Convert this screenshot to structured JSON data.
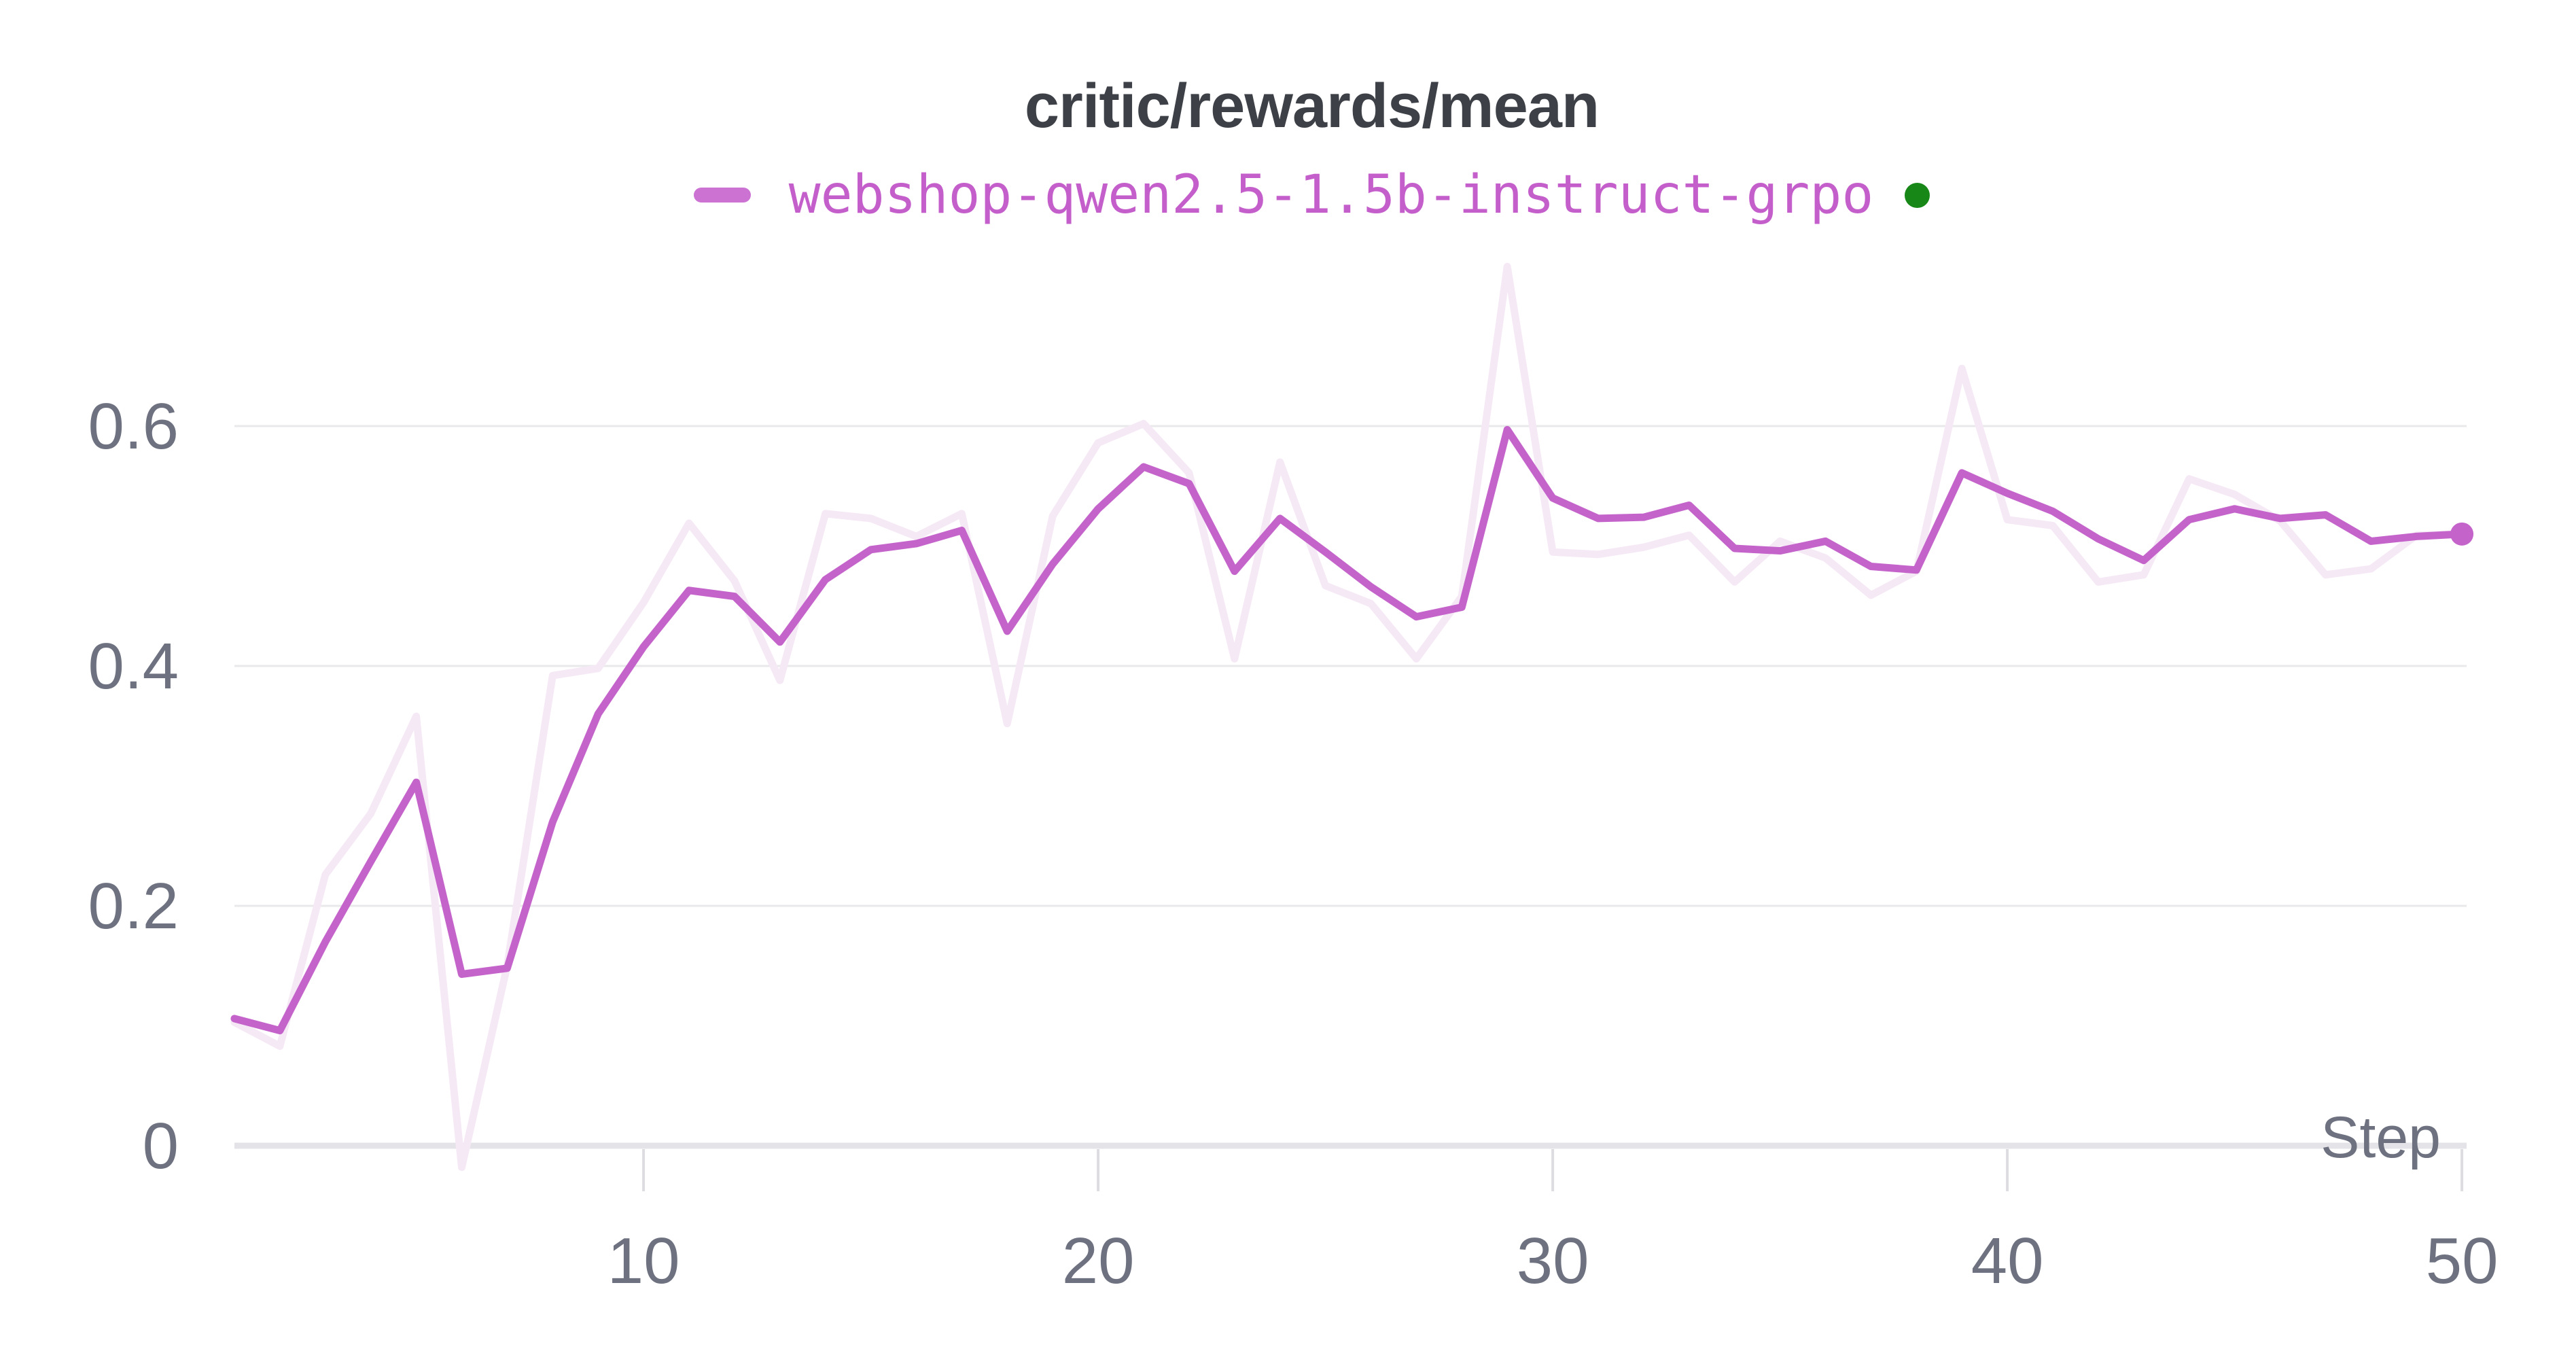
{
  "header": {
    "title": "critic/rewards/mean"
  },
  "legend": {
    "run_name": "webshop-qwen2.5-1.5b-instruct-grpo",
    "swatch_color": "#cb72d3",
    "label_color": "#c45ecb",
    "status_dot_color": "#178717"
  },
  "chart_data": {
    "type": "line",
    "title": "critic/rewards/mean",
    "xlabel": "Step",
    "ylabel": "",
    "legend_position": "top-center",
    "grid": "horizontal-only",
    "x_range": [
      1,
      50
    ],
    "ylim": [
      -0.05,
      0.74
    ],
    "x_ticks": [
      10,
      20,
      30,
      40,
      50
    ],
    "x_tick_labels": [
      "10",
      "20",
      "30",
      "40",
      "50"
    ],
    "y_ticks": [
      0,
      0.2,
      0.4,
      0.6
    ],
    "y_tick_labels": [
      "0",
      "0.2",
      "0.4",
      "0.6"
    ],
    "x": [
      1,
      2,
      3,
      4,
      5,
      6,
      7,
      8,
      9,
      10,
      11,
      12,
      13,
      14,
      15,
      16,
      17,
      18,
      19,
      20,
      21,
      22,
      23,
      24,
      25,
      26,
      27,
      28,
      29,
      30,
      31,
      32,
      33,
      34,
      35,
      36,
      37,
      38,
      39,
      40,
      41,
      42,
      43,
      44,
      45,
      46,
      47,
      48,
      49,
      50
    ],
    "series": [
      {
        "name": "webshop-qwen2.5-1.5b-instruct-grpo",
        "role": "smoothed",
        "color": "#c464cb",
        "values": [
          0.106,
          0.096,
          0.17,
          0.237,
          0.303,
          0.143,
          0.148,
          0.27,
          0.36,
          0.416,
          0.463,
          0.458,
          0.42,
          0.472,
          0.497,
          0.502,
          0.513,
          0.429,
          0.485,
          0.531,
          0.566,
          0.552,
          0.479,
          0.523,
          0.495,
          0.466,
          0.441,
          0.449,
          0.597,
          0.54,
          0.523,
          0.524,
          0.534,
          0.498,
          0.496,
          0.504,
          0.483,
          0.48,
          0.561,
          0.544,
          0.529,
          0.506,
          0.488,
          0.522,
          0.531,
          0.523,
          0.526,
          0.504,
          0.508,
          0.51
        ]
      },
      {
        "name": "webshop-qwen2.5-1.5b-instruct-grpo (original)",
        "role": "raw",
        "color": "#f6e9f6",
        "values": [
          0.103,
          0.083,
          0.226,
          0.277,
          0.358,
          -0.018,
          0.15,
          0.392,
          0.398,
          0.453,
          0.519,
          0.471,
          0.388,
          0.527,
          0.523,
          0.508,
          0.527,
          0.352,
          0.525,
          0.586,
          0.602,
          0.561,
          0.406,
          0.57,
          0.467,
          0.452,
          0.406,
          0.458,
          0.733,
          0.495,
          0.493,
          0.499,
          0.509,
          0.47,
          0.504,
          0.49,
          0.459,
          0.479,
          0.648,
          0.522,
          0.517,
          0.47,
          0.476,
          0.556,
          0.543,
          0.521,
          0.476,
          0.481,
          0.509,
          0.51
        ]
      }
    ],
    "end_marker": {
      "x": 50,
      "value": 0.51,
      "color": "#c464cb"
    }
  }
}
